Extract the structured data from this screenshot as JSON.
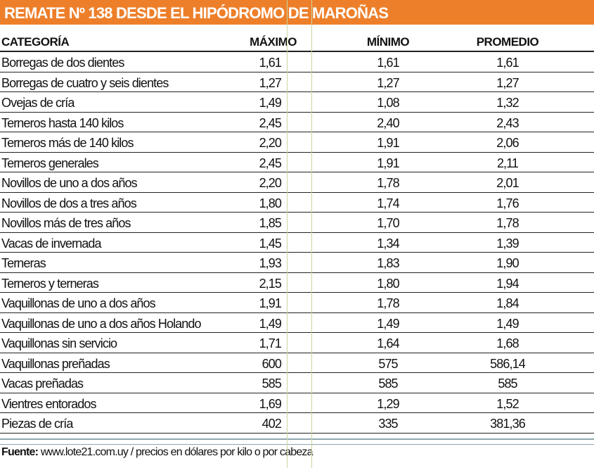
{
  "title": "REMATE Nº 138 DESDE EL HIPÓDROMO DE MAROÑAS",
  "columns": [
    "CATEGORÍA",
    "MÁXIMO",
    "MÍNIMO",
    "PROMEDIO"
  ],
  "rows": [
    [
      "Borregas de dos dientes",
      "1,61",
      "1,61",
      "1,61"
    ],
    [
      "Borregas de cuatro y seis dientes",
      "1,27",
      "1,27",
      "1,27"
    ],
    [
      "Ovejas de cría",
      "1,49",
      "1,08",
      "1,32"
    ],
    [
      "Terneros hasta 140 kilos",
      "2,45",
      "2,40",
      "2,43"
    ],
    [
      "Terneros más de 140 kilos",
      "2,20",
      "1,91",
      "2,06"
    ],
    [
      "Terneros generales",
      "2,45",
      "1,91",
      "2,11"
    ],
    [
      "Novillos de uno a dos años",
      "2,20",
      "1,78",
      "2,01"
    ],
    [
      "Novillos de dos a tres años",
      "1,80",
      "1,74",
      "1,76"
    ],
    [
      "Novillos más de tres años",
      "1,85",
      "1,70",
      "1,78"
    ],
    [
      "Vacas de invernada",
      "1,45",
      "1,34",
      "1,39"
    ],
    [
      "Terneras",
      "1,93",
      "1,83",
      "1,90"
    ],
    [
      "Terneros y terneras",
      "2,15",
      "1,80",
      "1,94"
    ],
    [
      "Vaquillonas de uno a dos años",
      "1,91",
      "1,78",
      "1,84"
    ],
    [
      "Vaquillonas de uno a dos años Holando",
      "1,49",
      "1,49",
      "1,49"
    ],
    [
      "Vaquillonas sin servicio",
      "1,71",
      "1,64",
      "1,68"
    ],
    [
      "Vaquillonas preñadas",
      "600",
      "575",
      "586,14"
    ],
    [
      "Vacas preñadas",
      "585",
      "585",
      "585"
    ],
    [
      "Vientres entorados",
      "1,69",
      "1,29",
      "1,52"
    ],
    [
      "Piezas de cría",
      "402",
      "335",
      "381,36"
    ]
  ],
  "footer": {
    "label": "Fuente:",
    "text": " www.lote21.com.uy / precios en dólares por kilo o por cabeza"
  },
  "colors": {
    "title_bg": "#ee7f2a"
  }
}
